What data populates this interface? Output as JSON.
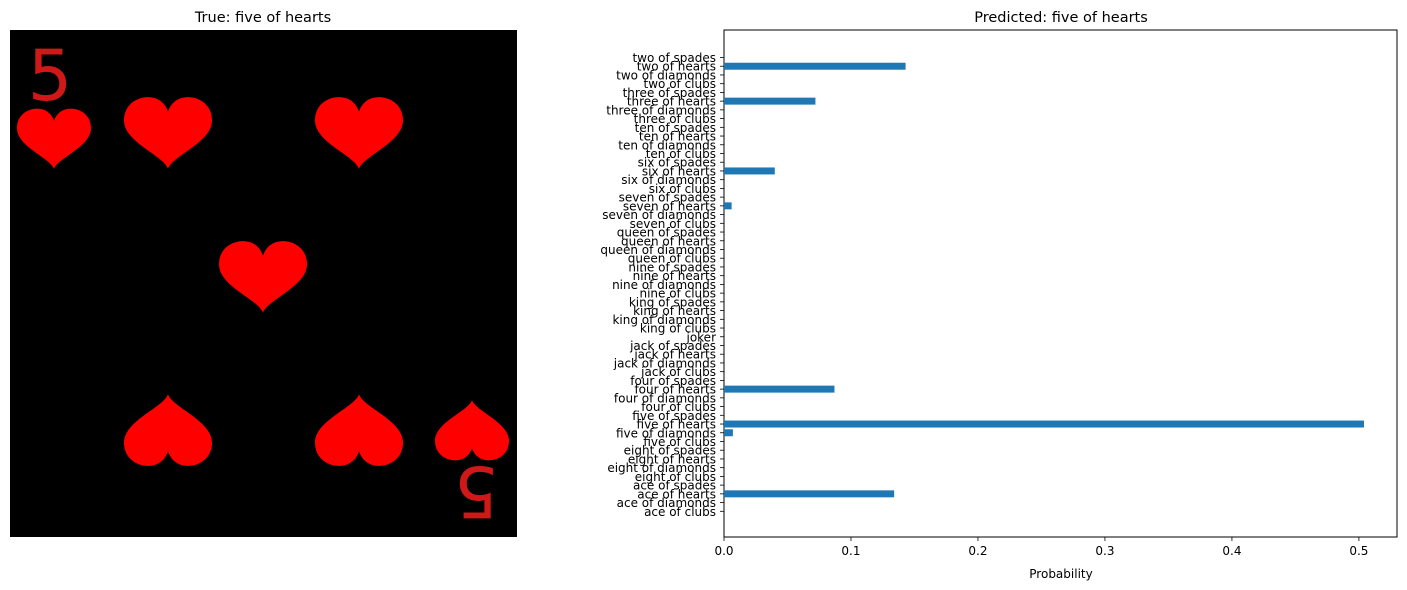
{
  "left_panel": {
    "title": "True: five of hearts",
    "card_rank_glyph": "5",
    "card_background": "#000000",
    "suit_color": "#ff0000"
  },
  "chart_data": {
    "type": "bar",
    "orientation": "horizontal",
    "title": "Predicted: five of hearts",
    "xlabel": "Probability",
    "ylabel": "",
    "xlim": [
      0,
      0.53
    ],
    "xticks": [
      "0.0",
      "0.1",
      "0.2",
      "0.3",
      "0.4",
      "0.5"
    ],
    "bar_color": "#1f77b4",
    "grid": false,
    "categories": [
      "ace of clubs",
      "ace of diamonds",
      "ace of hearts",
      "ace of spades",
      "eight of clubs",
      "eight of diamonds",
      "eight of hearts",
      "eight of spades",
      "five of clubs",
      "five of diamonds",
      "five of hearts",
      "five of spades",
      "four of clubs",
      "four of diamonds",
      "four of hearts",
      "four of spades",
      "jack of clubs",
      "jack of diamonds",
      "jack of hearts",
      "jack of spades",
      "joker",
      "king of clubs",
      "king of diamonds",
      "king of hearts",
      "king of spades",
      "nine of clubs",
      "nine of diamonds",
      "nine of hearts",
      "nine of spades",
      "queen of clubs",
      "queen of diamonds",
      "queen of hearts",
      "queen of spades",
      "seven of clubs",
      "seven of diamonds",
      "seven of hearts",
      "seven of spades",
      "six of clubs",
      "six of diamonds",
      "six of hearts",
      "six of spades",
      "ten of clubs",
      "ten of diamonds",
      "ten of hearts",
      "ten of spades",
      "three of clubs",
      "three of diamonds",
      "three of hearts",
      "three of spades",
      "two of clubs",
      "two of diamonds",
      "two of hearts",
      "two of spades"
    ],
    "values": [
      0.0,
      0.0,
      0.134,
      0.0,
      0.0,
      0.0,
      0.0,
      0.0,
      0.0,
      0.007,
      0.504,
      0.0,
      0.0,
      0.0,
      0.087,
      0.0,
      0.0,
      0.0,
      0.0,
      0.0,
      0.0,
      0.0,
      0.0,
      0.0,
      0.0,
      0.0,
      0.0,
      0.0,
      0.0,
      0.0,
      0.0,
      0.0,
      0.0,
      0.0,
      0.0,
      0.006,
      0.0,
      0.0,
      0.0,
      0.04,
      0.0,
      0.0,
      0.0,
      0.0,
      0.0,
      0.0,
      0.0,
      0.072,
      0.0,
      0.0,
      0.0,
      0.143,
      0.0
    ]
  }
}
